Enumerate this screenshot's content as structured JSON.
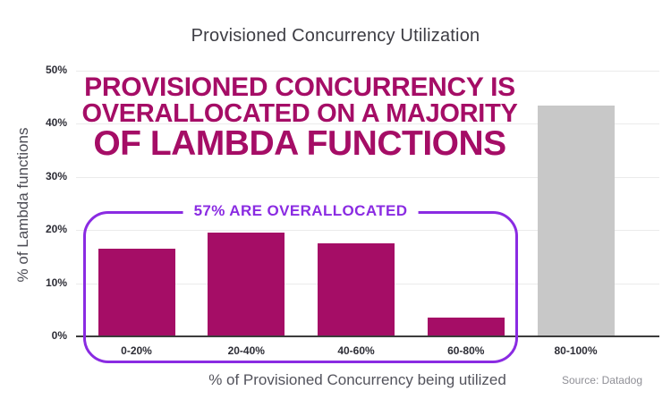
{
  "title": "Provisioned Concurrency Utilization",
  "headline": {
    "line1": "PROVISIONED CONCURRENCY IS",
    "line2": "OVERALLOCATED ON A MAJORITY",
    "line3": "OF LAMBDA FUNCTIONS",
    "color": "#a50d66"
  },
  "annotation": {
    "label": "57% ARE OVERALLOCATED",
    "color": "#8a2be2"
  },
  "x_axis": {
    "title": "% of Provisioned Concurrency being utilized"
  },
  "y_axis": {
    "title": "% of Lambda functions",
    "ticks": [
      "0%",
      "10%",
      "20%",
      "30%",
      "40%",
      "50%"
    ]
  },
  "source": "Source: Datadog",
  "colors": {
    "bar_magenta": "#a50d66",
    "bar_gray": "#c8c8c8",
    "annotation_purple": "#8a2be2",
    "grid": "#ebebeb",
    "axis": "#3c3c3c"
  },
  "chart_data": {
    "type": "bar",
    "title": "Provisioned Concurrency Utilization",
    "xlabel": "% of Provisioned Concurrency being utilized",
    "ylabel": "% of Lambda functions",
    "categories": [
      "0-20%",
      "20-40%",
      "40-60%",
      "60-80%",
      "80-100%"
    ],
    "values": [
      16.5,
      19.5,
      17.5,
      3.5,
      43.5
    ],
    "bar_colors": [
      "#a50d66",
      "#a50d66",
      "#a50d66",
      "#a50d66",
      "#c8c8c8"
    ],
    "ylim": [
      0,
      50
    ],
    "ytick_step": 10,
    "ytick_labels": [
      "0%",
      "10%",
      "20%",
      "30%",
      "40%",
      "50%"
    ],
    "grid": true,
    "legend": "none",
    "annotation": {
      "text": "57% ARE OVERALLOCATED",
      "covers_categories": [
        "0-20%",
        "20-40%",
        "40-60%",
        "60-80%"
      ],
      "sum_pct": 57
    }
  }
}
